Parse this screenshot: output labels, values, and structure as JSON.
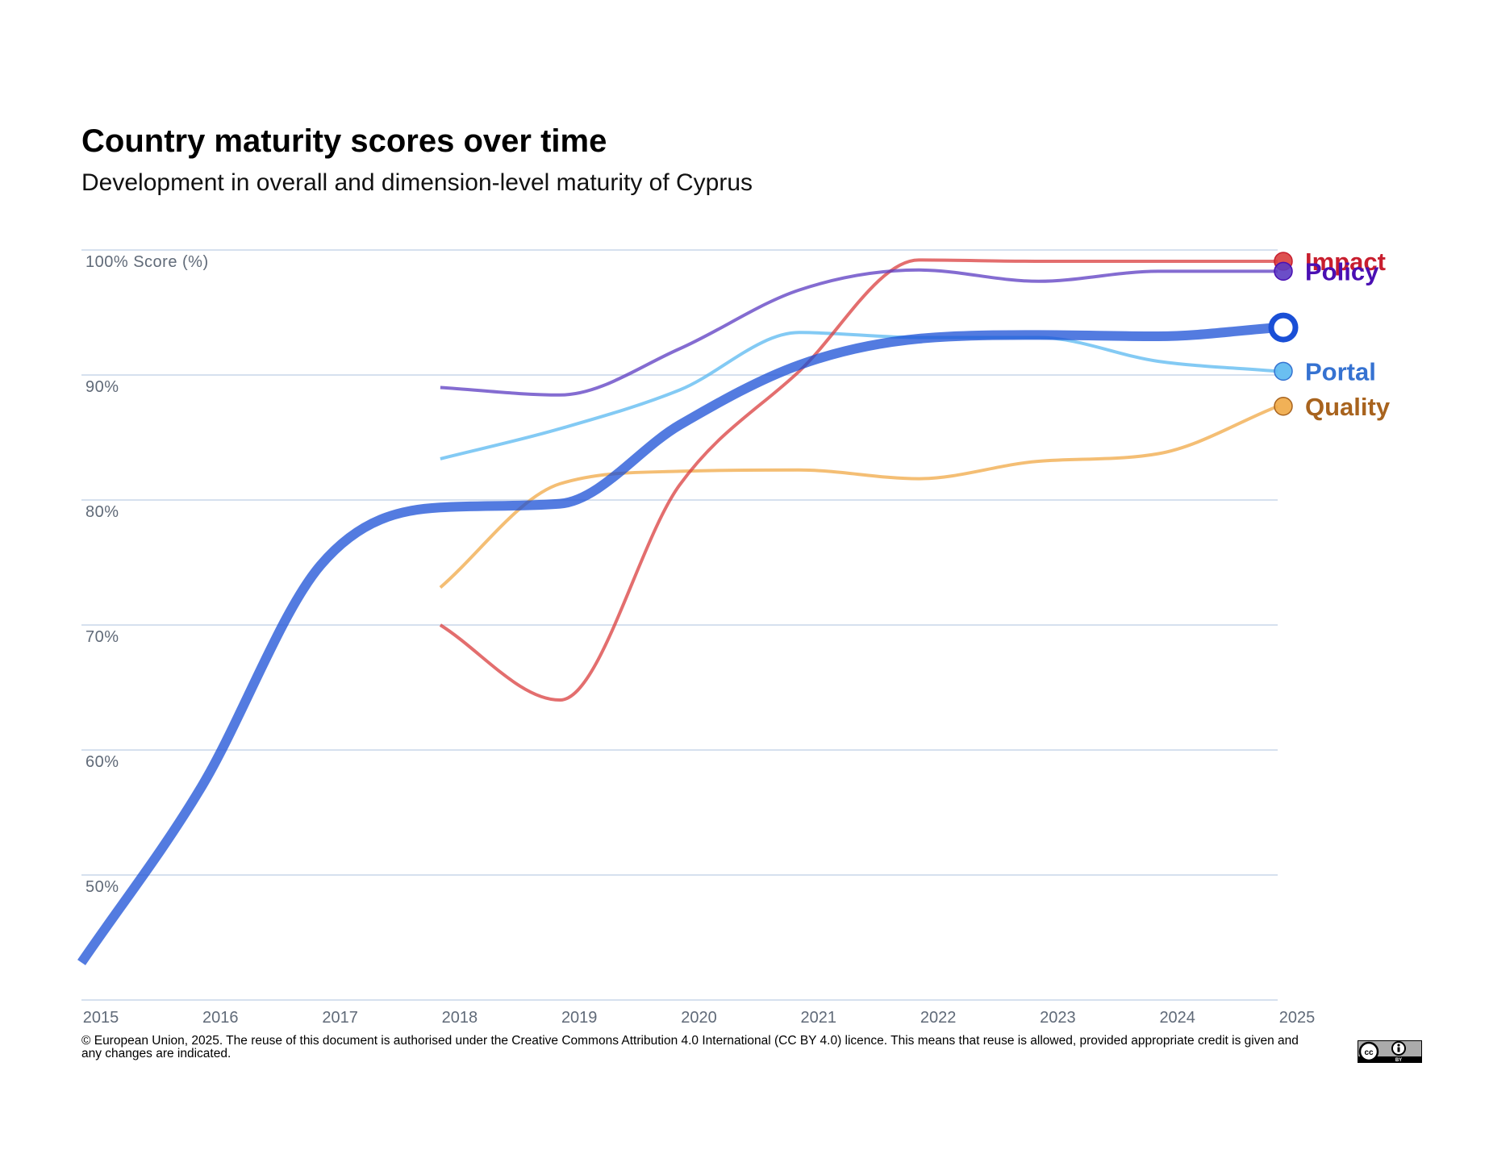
{
  "title": "Country maturity scores over time",
  "subtitle": "Development in overall and dimension-level maturity of Cyprus",
  "footer": "© European Union, 2025. The reuse of this document is authorised under the Creative Commons Attribution 4.0 International (CC BY 4.0) licence. This means that reuse is allowed, provided appropriate credit is given and any changes are indicated.",
  "chart_data": {
    "type": "line",
    "x": [
      2015,
      2016,
      2017,
      2018,
      2019,
      2020,
      2021,
      2022,
      2023,
      2024,
      2025
    ],
    "ylabel": "Score (%)",
    "ylim": [
      40,
      100
    ],
    "yticks": [
      50,
      60,
      70,
      80,
      90,
      100
    ],
    "grid": true,
    "legend": "right, labels at line ends",
    "series": [
      {
        "key": "quality",
        "name": "Quality",
        "color": "#F0A845",
        "label_color": "#A8631E",
        "width": 4,
        "x": [
          2018,
          2019,
          2020,
          2021,
          2022,
          2023,
          2024,
          2025
        ],
        "values": [
          73.0,
          81.3,
          82.3,
          82.4,
          81.7,
          83.1,
          83.7,
          87.5
        ]
      },
      {
        "key": "portal",
        "name": "Portal",
        "color": "#5AB8F0",
        "label_color": "#3572D1",
        "width": 4,
        "x": [
          2018,
          2019,
          2020,
          2021,
          2022,
          2023,
          2024,
          2025
        ],
        "values": [
          83.3,
          85.7,
          88.8,
          93.4,
          93.0,
          93.0,
          91.1,
          90.3
        ]
      },
      {
        "key": "impact",
        "name": "Impact",
        "color": "#D93D3D",
        "label_color": "#C81E2E",
        "width": 4,
        "x": [
          2018,
          2019,
          2020,
          2021,
          2022,
          2023,
          2024,
          2025
        ],
        "values": [
          70.0,
          64.0,
          81.2,
          90.3,
          99.2,
          99.1,
          99.1,
          99.1
        ]
      },
      {
        "key": "policy",
        "name": "Policy",
        "color": "#5B3BC2",
        "label_color": "#4A0FB3",
        "width": 4,
        "x": [
          2018,
          2019,
          2020,
          2021,
          2022,
          2023,
          2024,
          2025
        ],
        "values": [
          89.0,
          88.4,
          92.1,
          96.8,
          98.4,
          97.5,
          98.3,
          98.3
        ]
      },
      {
        "key": "overall",
        "name": "",
        "color": "#1A4FD6",
        "label_color": "#1A4FD6",
        "width": 12,
        "hollow_end": true,
        "x": [
          2015,
          2016,
          2017,
          2018,
          2019,
          2020,
          2021,
          2022,
          2023,
          2024,
          2025
        ],
        "values": [
          43.0,
          57.0,
          74.8,
          79.4,
          79.7,
          86.0,
          90.8,
          92.9,
          93.2,
          93.1,
          93.8
        ]
      }
    ]
  }
}
